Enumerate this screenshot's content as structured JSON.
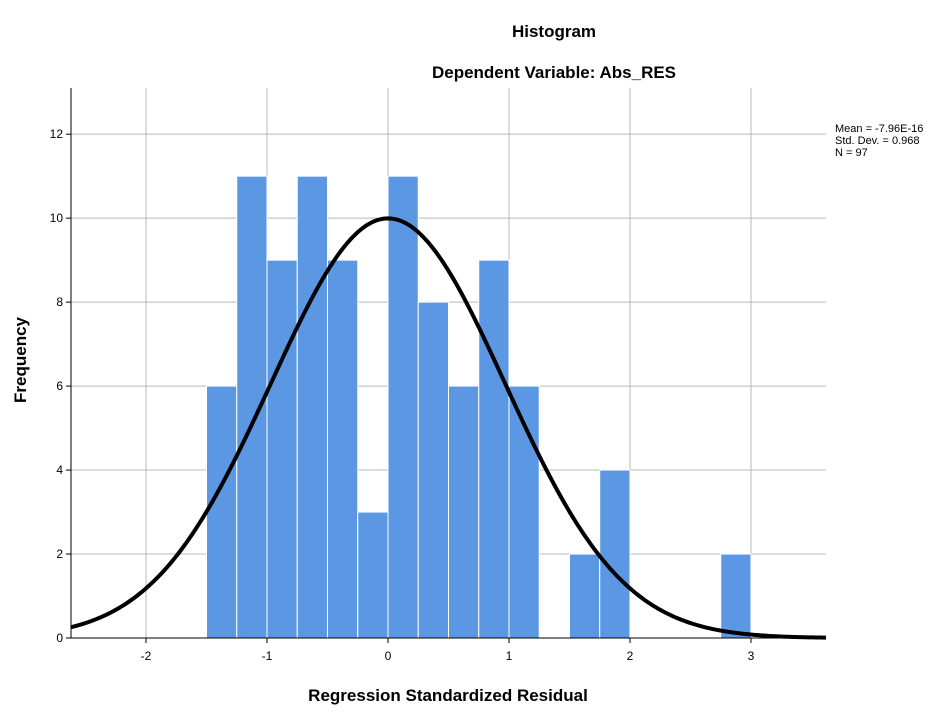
{
  "chart_data": {
    "type": "bar",
    "title": "Histogram",
    "subtitle": "Dependent Variable: Abs_RES",
    "xlabel": "Regression Standardized Residual",
    "ylabel": "Frequency",
    "xlim": [
      -2.62,
      3.62
    ],
    "ylim": [
      0,
      13.1
    ],
    "x_ticks": [
      -2,
      -1,
      0,
      1,
      2,
      3
    ],
    "y_ticks": [
      0,
      2,
      4,
      6,
      8,
      10,
      12
    ],
    "grid": true,
    "bin_width": 0.25,
    "bins": [
      {
        "start": -1.5,
        "end": -1.25,
        "count": 6
      },
      {
        "start": -1.25,
        "end": -1.0,
        "count": 11
      },
      {
        "start": -1.0,
        "end": -0.75,
        "count": 9
      },
      {
        "start": -0.75,
        "end": -0.5,
        "count": 11
      },
      {
        "start": -0.5,
        "end": -0.25,
        "count": 9
      },
      {
        "start": -0.25,
        "end": 0.0,
        "count": 3
      },
      {
        "start": 0.0,
        "end": 0.25,
        "count": 11
      },
      {
        "start": 0.25,
        "end": 0.5,
        "count": 8
      },
      {
        "start": 0.5,
        "end": 0.75,
        "count": 6
      },
      {
        "start": 0.75,
        "end": 1.0,
        "count": 9
      },
      {
        "start": 1.0,
        "end": 1.25,
        "count": 6
      },
      {
        "start": 1.25,
        "end": 1.5,
        "count": 0
      },
      {
        "start": 1.5,
        "end": 1.75,
        "count": 2
      },
      {
        "start": 1.75,
        "end": 2.0,
        "count": 4
      },
      {
        "start": 2.0,
        "end": 2.25,
        "count": 0
      },
      {
        "start": 2.25,
        "end": 2.5,
        "count": 0
      },
      {
        "start": 2.5,
        "end": 2.75,
        "count": 0
      },
      {
        "start": 2.75,
        "end": 3.0,
        "count": 2
      }
    ],
    "normal_curve": {
      "mean": 0,
      "std_dev": 0.968,
      "n": 97
    },
    "stats_box": {
      "placement": "top-right",
      "lines": [
        "Mean = -7.96E-16",
        "Std. Dev. = 0.968",
        "N = 97"
      ]
    },
    "colors": {
      "bar": "#5b97e2",
      "bar_edge": "#ffffff",
      "curve": "#000000",
      "grid": "#b9b9b9"
    }
  }
}
